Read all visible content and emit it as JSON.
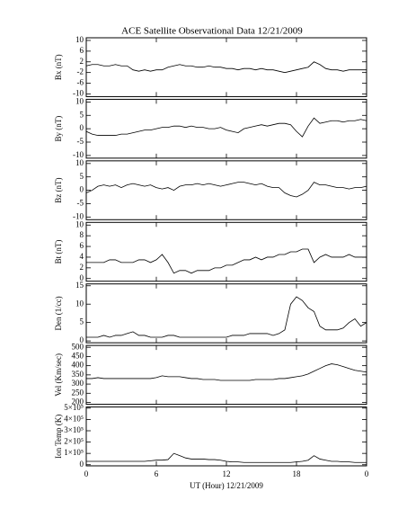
{
  "title": "ACE Satellite Observational Data   12/21/2009",
  "x_axis": {
    "xlabel": "UT (Hour)  12/21/2009",
    "xlim": [
      0,
      24
    ],
    "xticks": [
      0,
      6,
      12,
      18,
      {
        "value": 24,
        "label": "0"
      }
    ],
    "x": [
      0,
      0.5,
      1,
      1.5,
      2,
      2.5,
      3,
      3.5,
      4,
      4.5,
      5,
      5.5,
      6,
      6.5,
      7,
      7.5,
      8,
      8.5,
      9,
      9.5,
      10,
      10.5,
      11,
      11.5,
      12,
      12.5,
      13,
      13.5,
      14,
      14.5,
      15,
      15.5,
      16,
      16.5,
      17,
      17.5,
      18,
      18.5,
      19,
      19.5,
      20,
      20.5,
      21,
      21.5,
      22,
      22.5,
      23,
      23.5,
      24
    ]
  },
  "chart_data": [
    {
      "type": "line",
      "ylabel": "Bx (nT)",
      "color": "#000000",
      "ylim": [
        -11,
        11
      ],
      "yticks": [
        -10,
        -6,
        -2,
        2,
        6,
        10
      ],
      "values": [
        0.5,
        1,
        1,
        0.5,
        0.5,
        1,
        0.5,
        0.5,
        -1,
        -1.5,
        -1,
        -1.5,
        -1,
        -1,
        0,
        0.5,
        1,
        0.5,
        0.5,
        0,
        0,
        0.5,
        0,
        0,
        -0.5,
        -0.5,
        -1,
        -0.5,
        -0.5,
        -1,
        -0.5,
        -1,
        -1,
        -1.5,
        -2,
        -1.5,
        -1,
        -0.5,
        0,
        2,
        1,
        -0.5,
        -1,
        -1,
        -1.5,
        -1,
        -1,
        -1,
        -1
      ]
    },
    {
      "type": "line",
      "ylabel": "By (nT)",
      "color": "#000000",
      "ylim": [
        -11,
        11
      ],
      "yticks": [
        -10,
        -5,
        0,
        5,
        10
      ],
      "values": [
        -1,
        -2,
        -2.5,
        -2.5,
        -2.5,
        -2.5,
        -2,
        -2,
        -1.5,
        -1,
        -0.5,
        -0.5,
        0,
        0.5,
        0.5,
        1,
        1,
        0.5,
        1,
        0.5,
        0.5,
        0,
        0,
        0.5,
        -0.5,
        -1,
        -1.5,
        0,
        0.5,
        1,
        1.5,
        1,
        1.5,
        2,
        2,
        1.5,
        -1,
        -3,
        1,
        4,
        2,
        2.5,
        3,
        3,
        2.5,
        3,
        3,
        3.5,
        3
      ]
    },
    {
      "type": "line",
      "ylabel": "Bz (nT)",
      "color": "#000000",
      "ylim": [
        -11,
        11
      ],
      "yticks": [
        -10,
        -5,
        0,
        5,
        10
      ],
      "values": [
        -1,
        0,
        1.5,
        2,
        1.5,
        2,
        1,
        2,
        2.5,
        2,
        1.5,
        2,
        1,
        0.5,
        1,
        0,
        1.5,
        2,
        2,
        2.5,
        2,
        2.5,
        2,
        1.5,
        2,
        2.5,
        3,
        3,
        2.5,
        2,
        2.5,
        1.5,
        1,
        1,
        -1,
        -2,
        -2.5,
        -1.5,
        0,
        3,
        2,
        2,
        1.5,
        1,
        1,
        0.5,
        1,
        1,
        1.5
      ]
    },
    {
      "type": "line",
      "ylabel": "Bt (nT)",
      "color": "#000000",
      "ylim": [
        -0.5,
        10.5
      ],
      "yticks": [
        0,
        2,
        4,
        6,
        8,
        10
      ],
      "values": [
        3,
        3,
        3,
        3,
        3.5,
        3.5,
        3,
        3,
        3,
        3.5,
        3.5,
        3,
        3.5,
        4.5,
        3,
        1,
        1.5,
        1.5,
        1,
        1.5,
        1.5,
        1.5,
        2,
        2,
        2.5,
        2.5,
        3,
        3.5,
        3.5,
        4,
        3.5,
        4,
        4,
        4.5,
        4.5,
        5,
        5,
        5.5,
        5.5,
        3,
        4,
        4.5,
        4,
        4,
        4,
        4.5,
        4,
        4,
        4
      ]
    },
    {
      "type": "line",
      "ylabel": "Den (1/cc)",
      "color": "#000000",
      "ylim": [
        -0.5,
        15.5
      ],
      "yticks": [
        0,
        5,
        10,
        15
      ],
      "values": [
        1,
        1,
        1,
        1.5,
        1,
        1.5,
        1.5,
        2,
        2.5,
        1.5,
        1.5,
        1,
        1,
        1,
        1.5,
        1.5,
        1,
        1,
        1,
        1,
        1,
        1,
        1,
        1,
        1,
        1.5,
        1.5,
        1.5,
        2,
        2,
        2,
        2,
        1.5,
        2,
        3,
        10,
        12,
        11,
        9,
        8,
        4,
        3,
        3,
        3,
        3.5,
        5,
        6,
        4,
        5
      ]
    },
    {
      "type": "line",
      "ylabel": "Vel (Km/sec)",
      "color": "#000000",
      "ylim": [
        190,
        510
      ],
      "yticks": [
        200,
        250,
        300,
        350,
        400,
        450,
        500
      ],
      "values": [
        330,
        330,
        335,
        330,
        330,
        330,
        330,
        330,
        330,
        330,
        330,
        330,
        335,
        345,
        340,
        340,
        340,
        335,
        330,
        330,
        325,
        325,
        325,
        320,
        320,
        320,
        320,
        320,
        320,
        325,
        325,
        325,
        325,
        330,
        330,
        335,
        340,
        345,
        355,
        370,
        385,
        400,
        410,
        405,
        395,
        385,
        375,
        370,
        365
      ]
    },
    {
      "type": "line",
      "ylabel": "Ion Temp (K)",
      "color": "#000000",
      "ylim": [
        -10000,
        510000
      ],
      "yticks": [
        0,
        {
          "value": 100000,
          "label": "1×10⁵"
        },
        {
          "value": 200000,
          "label": "2×10⁵"
        },
        {
          "value": 300000,
          "label": "3×10⁵"
        },
        {
          "value": 400000,
          "label": "4×10⁵"
        },
        {
          "value": 500000,
          "label": "5×10⁵"
        }
      ],
      "values": [
        30000,
        30000,
        30000,
        30000,
        30000,
        30000,
        30000,
        30000,
        30000,
        30000,
        30000,
        35000,
        40000,
        40000,
        45000,
        100000,
        80000,
        60000,
        50000,
        50000,
        50000,
        45000,
        45000,
        40000,
        30000,
        25000,
        25000,
        20000,
        20000,
        20000,
        20000,
        20000,
        20000,
        20000,
        20000,
        20000,
        25000,
        30000,
        40000,
        80000,
        50000,
        40000,
        30000,
        30000,
        25000,
        25000,
        20000,
        20000,
        20000
      ]
    }
  ]
}
